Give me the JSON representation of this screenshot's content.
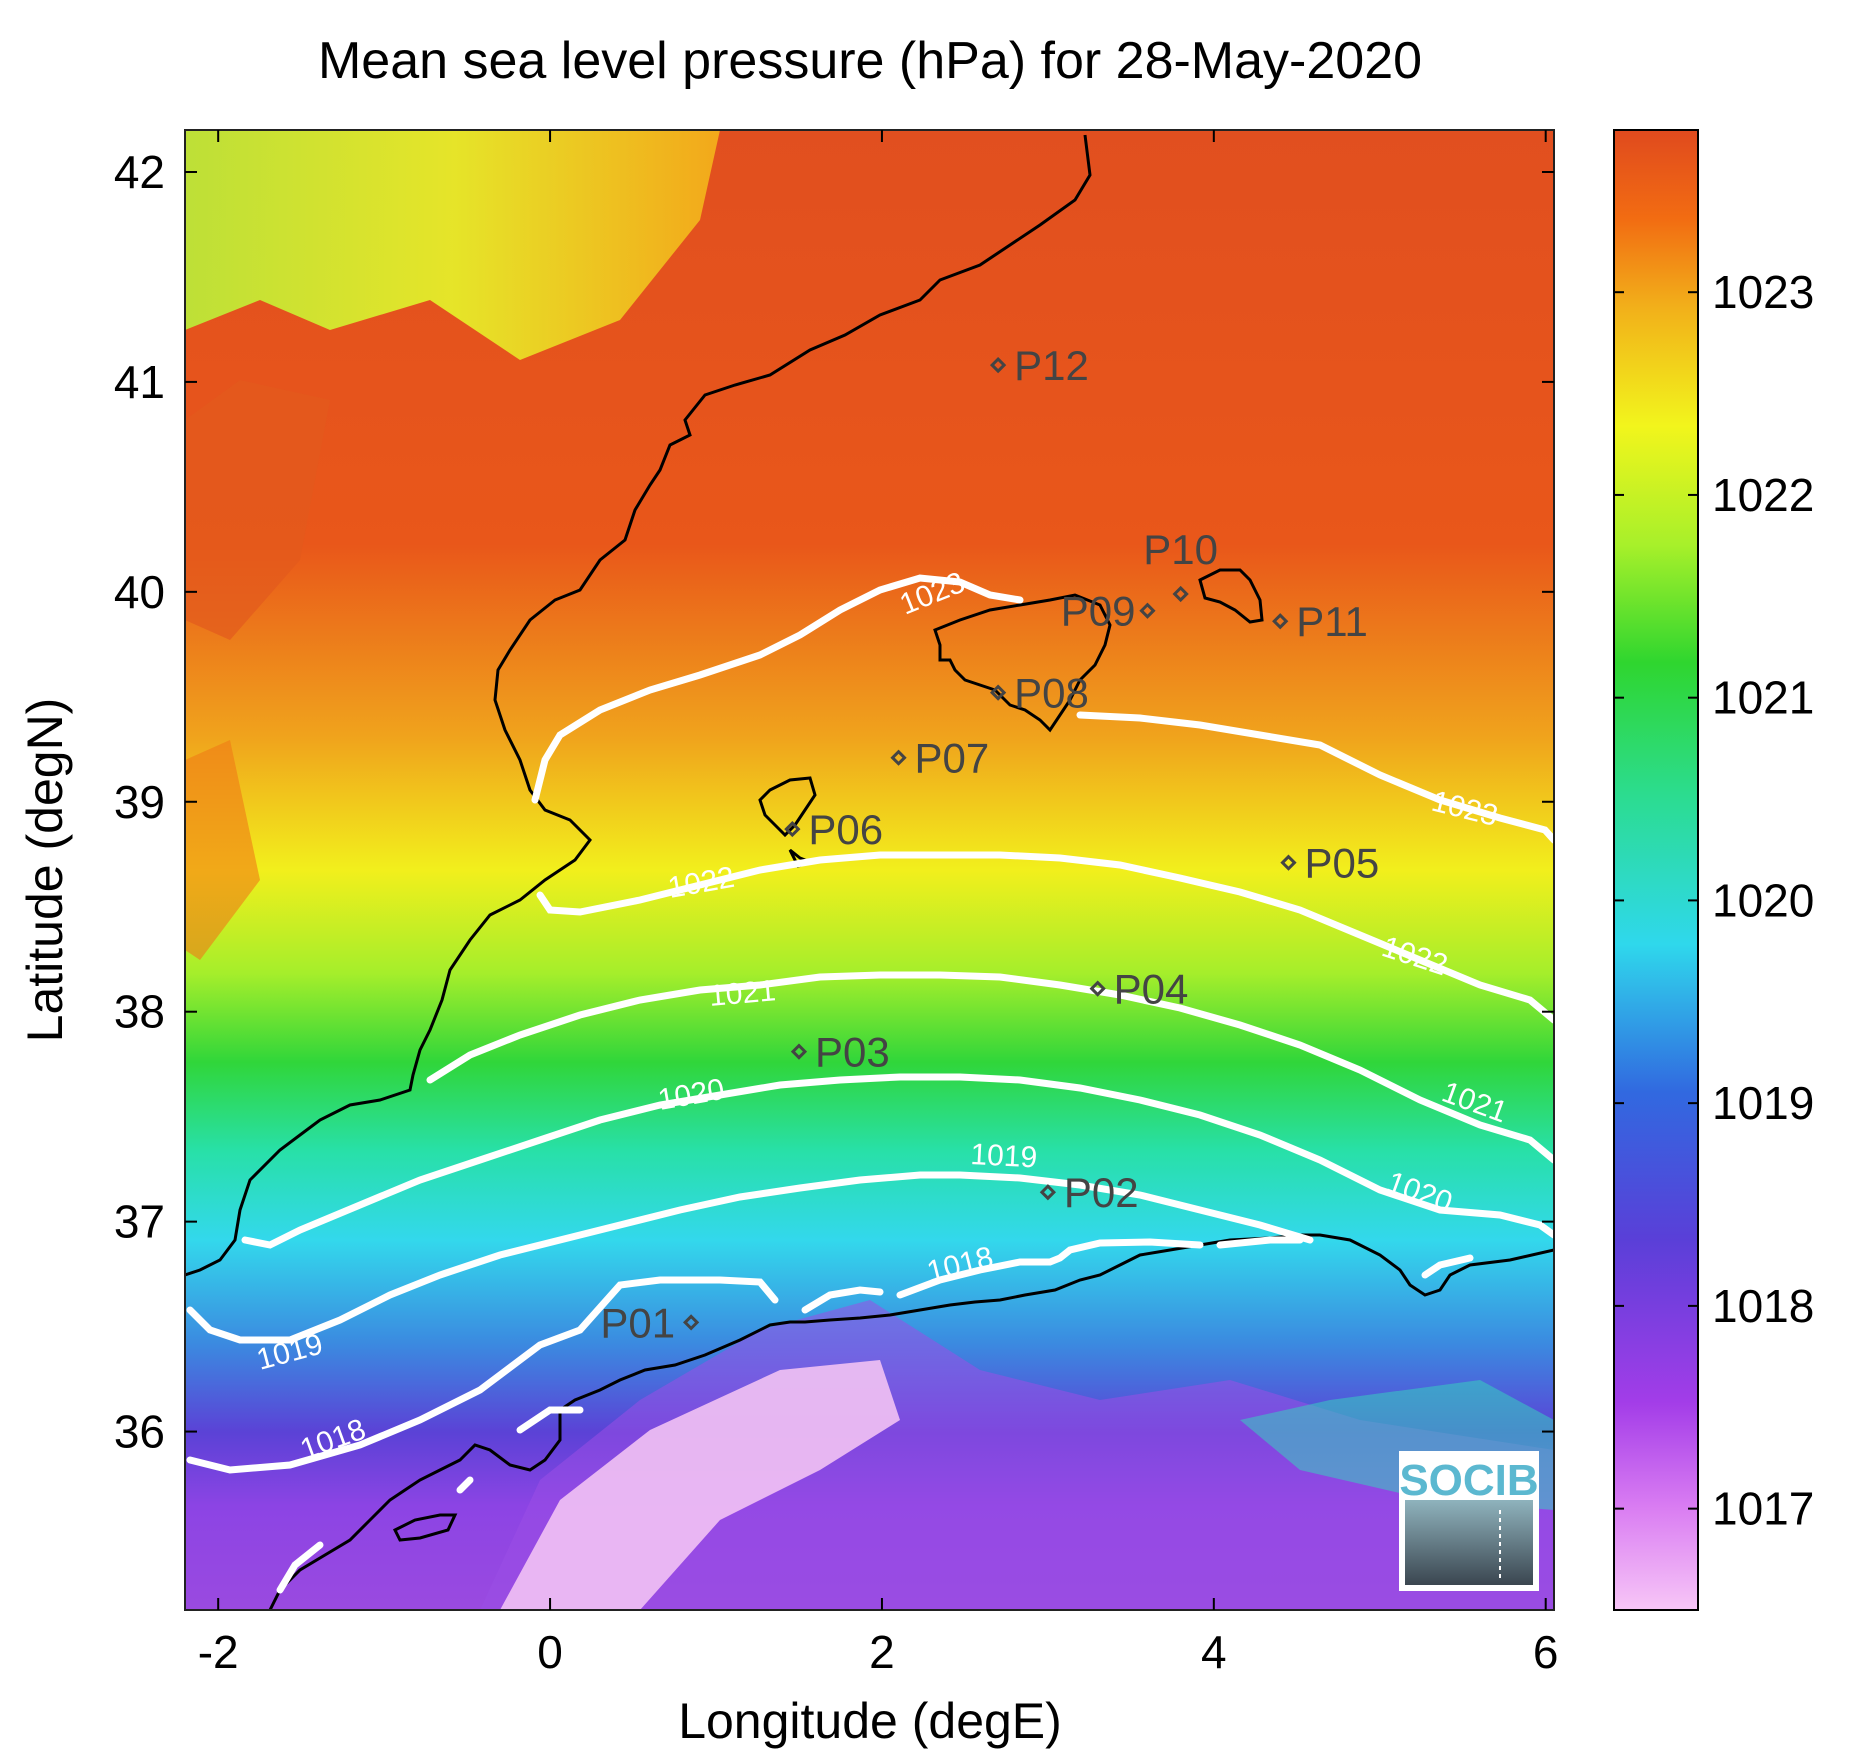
{
  "title": "Mean sea level pressure (hPa) for 28-May-2020",
  "x_axis": {
    "label": "Longitude (degE)",
    "ticks": [
      {
        "value": -2,
        "label": "-2"
      },
      {
        "value": 0,
        "label": "0"
      },
      {
        "value": 2,
        "label": "2"
      },
      {
        "value": 4,
        "label": "4"
      },
      {
        "value": 6,
        "label": "6"
      }
    ],
    "range": [
      -2.2,
      6.05
    ]
  },
  "y_axis": {
    "label": "Latitude (degN)",
    "ticks": [
      {
        "value": 36,
        "label": "36"
      },
      {
        "value": 37,
        "label": "37"
      },
      {
        "value": 38,
        "label": "38"
      },
      {
        "value": 39,
        "label": "39"
      },
      {
        "value": 40,
        "label": "40"
      },
      {
        "value": 41,
        "label": "41"
      },
      {
        "value": 42,
        "label": "42"
      }
    ],
    "range": [
      35.15,
      42.2
    ]
  },
  "colorbar": {
    "range": [
      1016.5,
      1023.8
    ],
    "ticks": [
      {
        "value": 1017,
        "label": "1017"
      },
      {
        "value": 1018,
        "label": "1018"
      },
      {
        "value": 1019,
        "label": "1019"
      },
      {
        "value": 1020,
        "label": "1020"
      },
      {
        "value": 1021,
        "label": "1021"
      },
      {
        "value": 1022,
        "label": "1022"
      },
      {
        "value": 1023,
        "label": "1023"
      }
    ],
    "colors": [
      "#f7c6f7",
      "#b23cf0",
      "#5c3fd8",
      "#2f6de0",
      "#2ee0e8",
      "#2bd87a",
      "#2fd62f",
      "#a8f02a",
      "#f2f51c",
      "#f5b21a",
      "#f26a12",
      "#e04a1e"
    ]
  },
  "stations": [
    {
      "id": "P01",
      "lon": 0.85,
      "lat": 36.52
    },
    {
      "id": "P02",
      "lon": 3.0,
      "lat": 37.14
    },
    {
      "id": "P03",
      "lon": 1.5,
      "lat": 37.81
    },
    {
      "id": "P04",
      "lon": 3.3,
      "lat": 38.11
    },
    {
      "id": "P05",
      "lon": 4.45,
      "lat": 38.71
    },
    {
      "id": "P06",
      "lon": 1.46,
      "lat": 38.87
    },
    {
      "id": "P07",
      "lon": 2.1,
      "lat": 39.21
    },
    {
      "id": "P08",
      "lon": 2.7,
      "lat": 39.52
    },
    {
      "id": "P09",
      "lon": 3.6,
      "lat": 39.91
    },
    {
      "id": "P10",
      "lon": 3.8,
      "lat": 39.99
    },
    {
      "id": "P11",
      "lon": 4.4,
      "lat": 39.86
    },
    {
      "id": "P12",
      "lon": 2.7,
      "lat": 41.08
    }
  ],
  "contours": [
    {
      "level": "1023",
      "labels": [
        "1023",
        "1023"
      ]
    },
    {
      "level": "1022",
      "labels": [
        "1022",
        "1022"
      ]
    },
    {
      "level": "1021",
      "labels": [
        "1021",
        "1021"
      ]
    },
    {
      "level": "1020",
      "labels": [
        "1020",
        "1020"
      ]
    },
    {
      "level": "1019",
      "labels": [
        "1019",
        "1019"
      ]
    },
    {
      "level": "1018",
      "labels": [
        "1018",
        "1018"
      ]
    }
  ],
  "logo": {
    "text": "SOCIB"
  },
  "colors": {
    "contour": "#ffffff",
    "coastline": "#000000",
    "station_marker": "#444444"
  }
}
